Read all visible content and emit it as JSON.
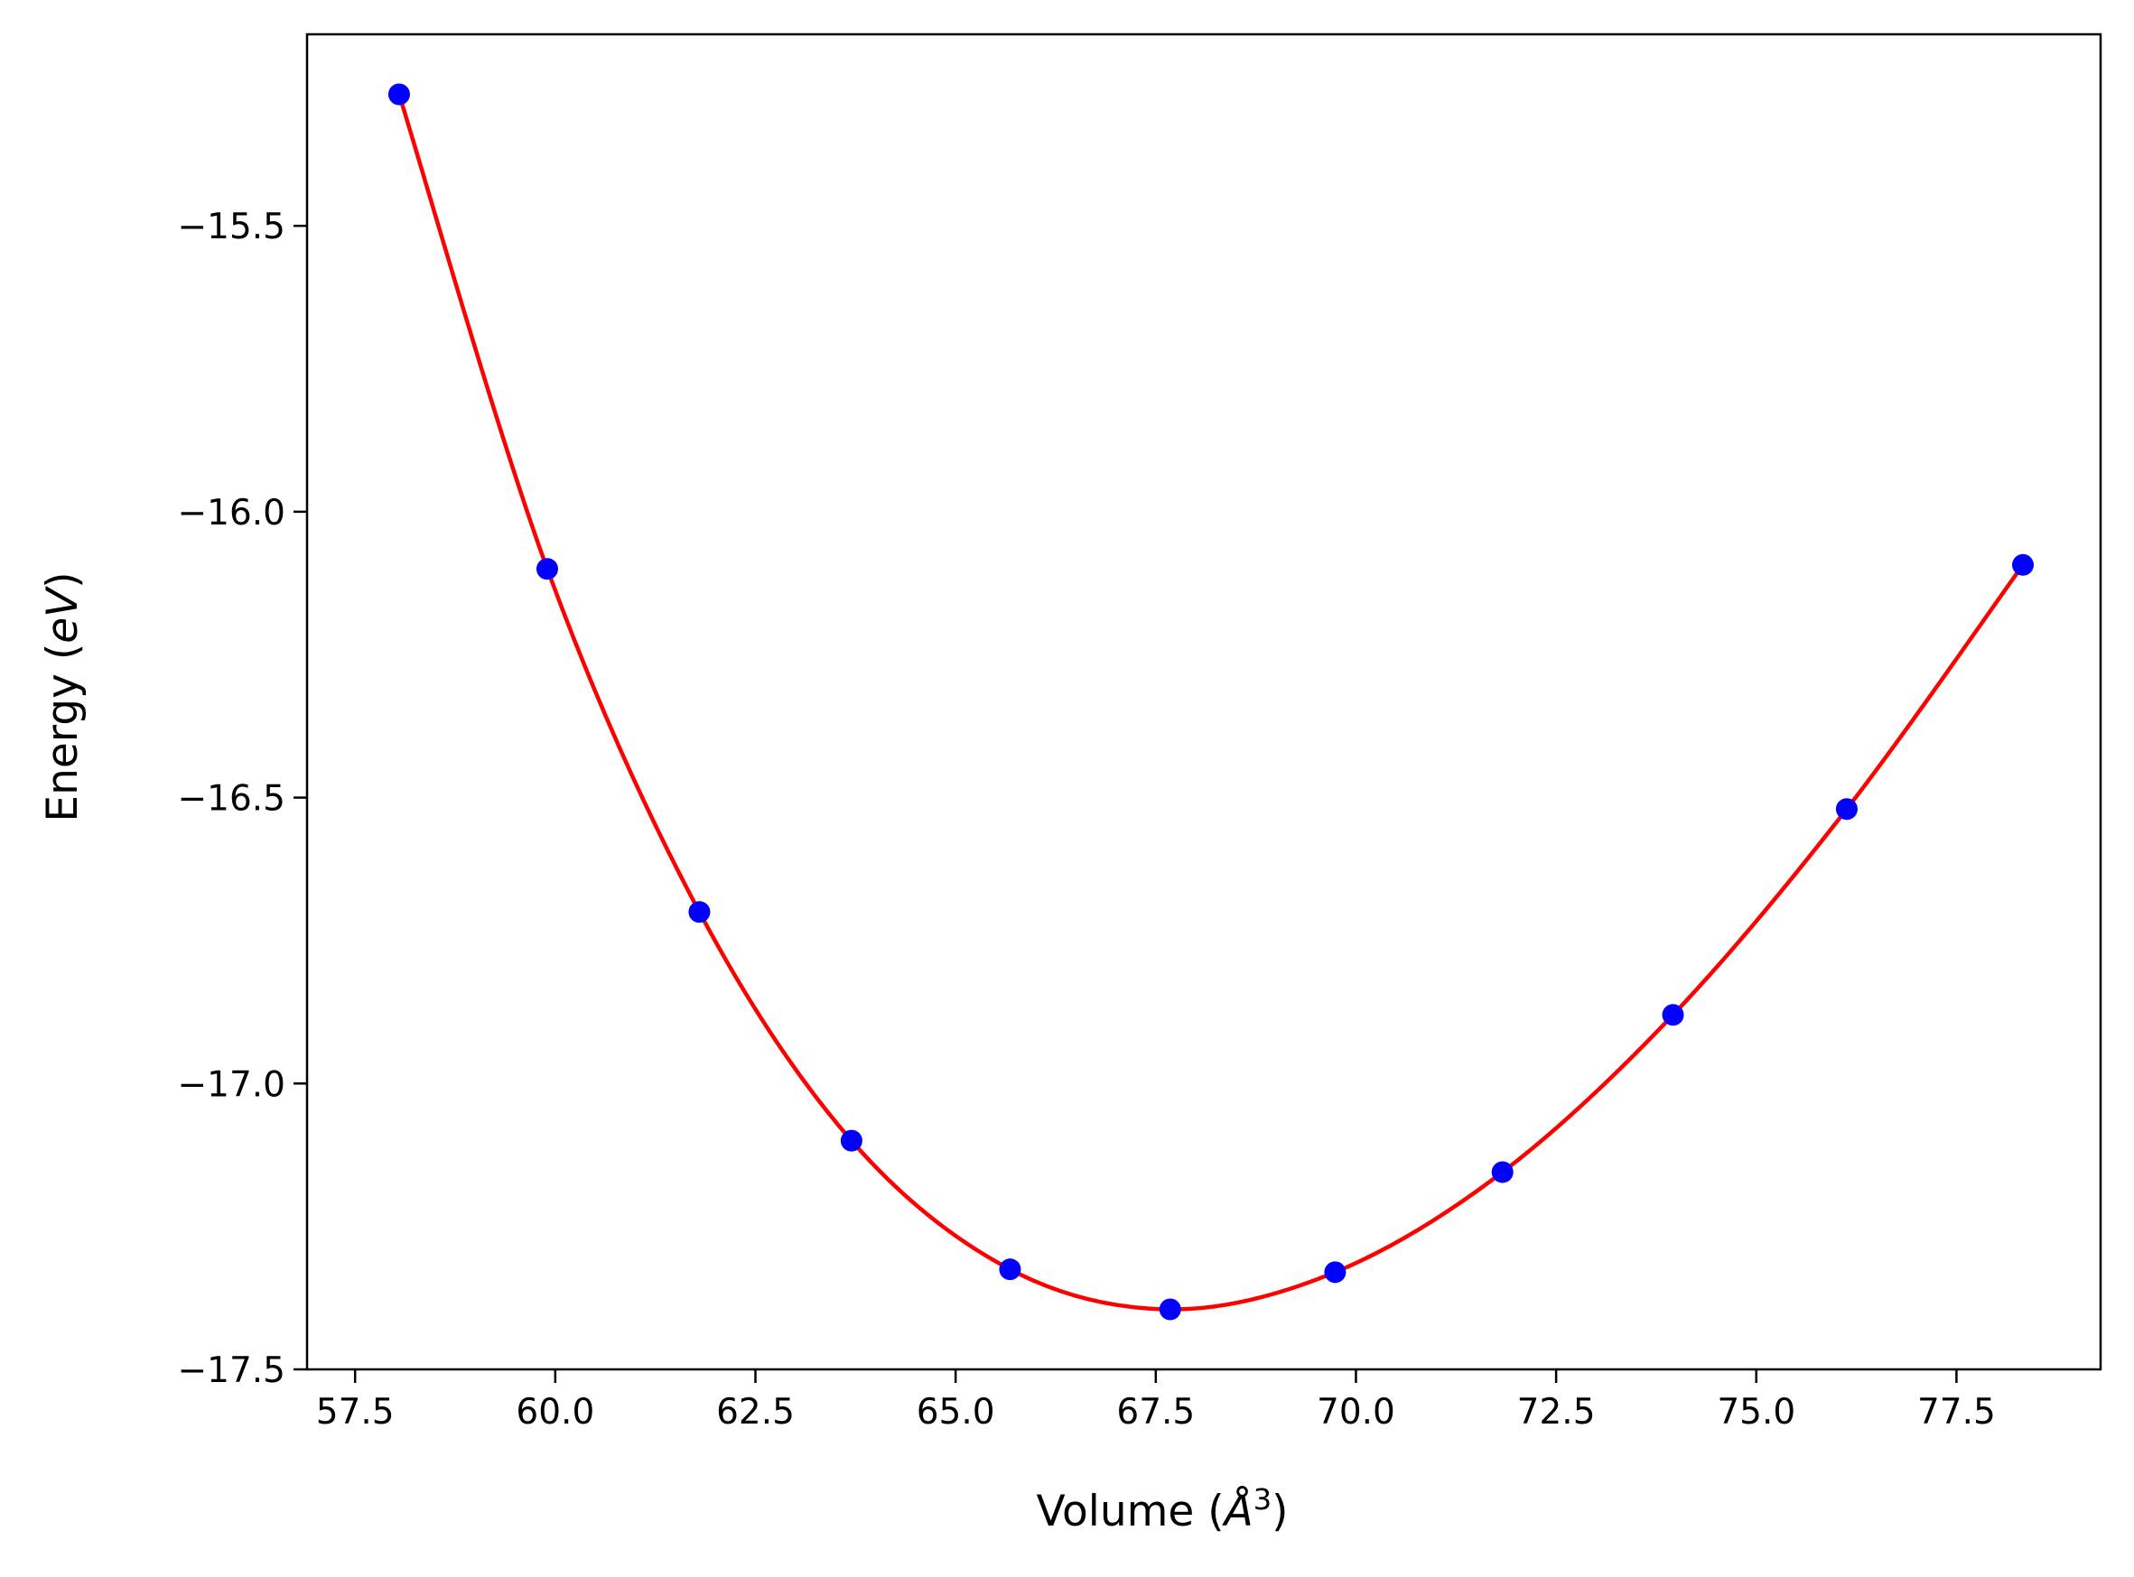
{
  "chart_data": {
    "type": "line",
    "title": "",
    "xlabel": "Volume (",
    "xlabel_symbol": "Å",
    "xlabel_exp": "3",
    "xlabel_close": ")",
    "ylabel": "Energy (",
    "ylabel_symbol": "eV",
    "ylabel_close": ")",
    "xlim": [
      56.9,
      79.3
    ],
    "ylim": [
      -17.5,
      -15.165
    ],
    "xticks": [
      57.5,
      60.0,
      62.5,
      65.0,
      67.5,
      70.0,
      72.5,
      75.0,
      77.5
    ],
    "xtick_labels": [
      "57.5",
      "60.0",
      "62.5",
      "65.0",
      "67.5",
      "70.0",
      "72.5",
      "75.0",
      "77.5"
    ],
    "yticks": [
      -15.5,
      -16.0,
      -16.5,
      -17.0,
      -17.5
    ],
    "ytick_labels": [
      "−15.5",
      "−16.0",
      "−16.5",
      "−17.0",
      "−17.5"
    ],
    "grid": false,
    "series": [
      {
        "kind": "scatter",
        "color": "#0000ff",
        "x": [
          58.05,
          59.9,
          61.8,
          63.7,
          65.68,
          67.68,
          69.74,
          71.83,
          73.96,
          76.13,
          78.33
        ],
        "y": [
          -15.27,
          -16.1,
          -16.7,
          -17.1,
          -17.325,
          -17.395,
          -17.33,
          -17.155,
          -16.88,
          -16.52,
          -16.093
        ]
      },
      {
        "kind": "fit",
        "color": "#ff0000",
        "x": [
          58.05,
          59.9,
          61.8,
          63.7,
          65.68,
          67.68,
          69.74,
          71.83,
          73.96,
          76.13,
          78.33
        ],
        "y": [
          -15.27,
          -16.1,
          -16.7,
          -17.1,
          -17.325,
          -17.395,
          -17.33,
          -17.155,
          -16.88,
          -16.52,
          -16.093
        ]
      }
    ]
  }
}
